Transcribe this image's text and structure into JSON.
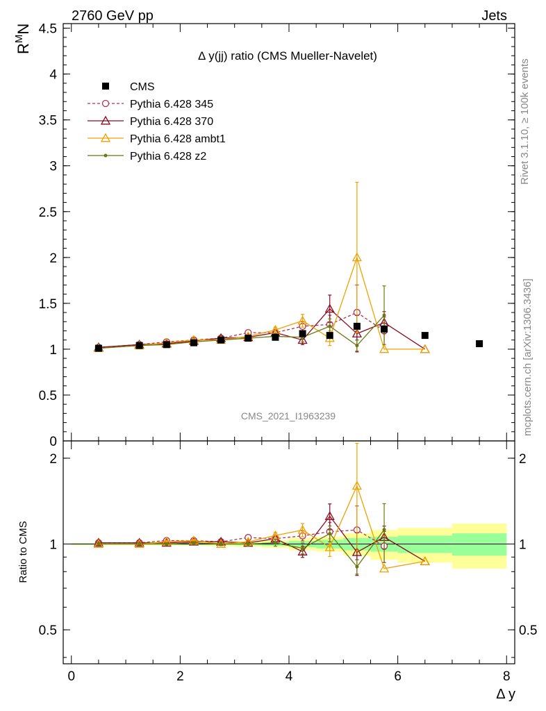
{
  "header": {
    "left": "2760 GeV pp",
    "right": "Jets"
  },
  "side_labels": {
    "rivet": "Rivet 3.1.10, ≥ 100k events",
    "mcplots": "mcplots.cern.ch [arXiv:1306.3436]"
  },
  "watermark": "CMS_2021_I1963239",
  "chart_data": {
    "type": "scatter",
    "title": "Δ y(jj) ratio (CMS Mueller-Navelet)",
    "ylabel_main": "R^M N",
    "ylabel_ratio": "Ratio to CMS",
    "xlabel": "Δ y",
    "xlim": [
      -0.15,
      8.15
    ],
    "ylim_main": [
      0,
      4.55
    ],
    "ylim_ratio": [
      0.38,
      2.3
    ],
    "ratio_log_scale": true,
    "yticks_main": [
      "0",
      "0.5",
      "1",
      "1.5",
      "2",
      "2.5",
      "3",
      "3.5",
      "4",
      "4.5"
    ],
    "yticks_ratio": [
      "0.5",
      "1",
      "2"
    ],
    "xticks": [
      "0",
      "2",
      "4",
      "6",
      "8"
    ],
    "legend_position": "top-left",
    "data": {
      "name": "CMS",
      "x": [
        0.5,
        1.25,
        1.75,
        2.25,
        2.75,
        3.25,
        3.75,
        4.25,
        4.75,
        5.25,
        5.75,
        6.5,
        7.5
      ],
      "xlow": [
        0,
        1,
        1.5,
        2,
        2.5,
        3,
        3.5,
        4,
        4.5,
        5,
        5.5,
        6,
        7
      ],
      "xhigh": [
        1,
        1.5,
        2,
        2.5,
        3,
        3.5,
        4,
        4.5,
        5,
        5.5,
        6,
        7,
        8
      ],
      "y": [
        1.01,
        1.04,
        1.05,
        1.07,
        1.1,
        1.12,
        1.13,
        1.17,
        1.15,
        1.25,
        1.22,
        1.15,
        1.06
      ],
      "stat_band": [
        0.005,
        0.005,
        0.006,
        0.007,
        0.008,
        0.01,
        0.015,
        0.025,
        0.035,
        0.05,
        0.06,
        0.07,
        0.09
      ],
      "total_band": [
        0.01,
        0.01,
        0.012,
        0.014,
        0.017,
        0.022,
        0.03,
        0.05,
        0.06,
        0.09,
        0.12,
        0.14,
        0.18
      ]
    },
    "series": [
      {
        "name": "Pythia 6.428 345",
        "color": "#b03050",
        "marker": "open-circle",
        "dashed": true,
        "x": [
          0.5,
          1.25,
          1.75,
          2.25,
          2.75,
          3.25,
          3.75,
          4.25,
          4.75,
          5.25,
          5.75
        ],
        "y": [
          1.02,
          1.05,
          1.08,
          1.1,
          1.12,
          1.18,
          1.18,
          1.25,
          1.27,
          1.4,
          1.2
        ],
        "err": [
          0.01,
          0.01,
          0.01,
          0.01,
          0.015,
          0.02,
          0.03,
          0.05,
          0.1,
          0.3,
          0.15
        ]
      },
      {
        "name": "Pythia 6.428 370",
        "color": "#8b0a1e",
        "marker": "open-triangle",
        "dashed": false,
        "x": [
          0.5,
          1.25,
          1.75,
          2.25,
          2.75,
          3.25,
          3.75,
          4.25,
          4.75,
          5.25,
          5.75,
          6.5
        ],
        "y": [
          1.02,
          1.05,
          1.06,
          1.09,
          1.12,
          1.13,
          1.18,
          1.1,
          1.44,
          1.17,
          1.29,
          1.0
        ],
        "err": [
          0.01,
          0.01,
          0.01,
          0.01,
          0.015,
          0.02,
          0.03,
          0.05,
          0.15,
          0.2,
          0.12,
          0.0
        ]
      },
      {
        "name": "Pythia 6.428 ambt1",
        "color": "#f0a000",
        "marker": "open-triangle",
        "dashed": false,
        "x": [
          0.5,
          1.25,
          1.75,
          2.25,
          2.75,
          3.25,
          3.75,
          4.25,
          4.75,
          5.25,
          5.75,
          6.5
        ],
        "y": [
          1.01,
          1.04,
          1.07,
          1.1,
          1.1,
          1.14,
          1.21,
          1.31,
          1.12,
          2.0,
          1.0,
          1.0
        ],
        "err": [
          0.01,
          0.01,
          0.01,
          0.01,
          0.015,
          0.02,
          0.03,
          0.07,
          0.08,
          0.82,
          0.0,
          0.0
        ]
      },
      {
        "name": "Pythia 6.428 z2",
        "color": "#6b7a10",
        "marker": "dot",
        "dashed": false,
        "x": [
          0.5,
          1.25,
          1.75,
          2.25,
          2.75,
          3.25,
          3.75,
          4.25,
          4.75,
          5.25,
          5.75
        ],
        "y": [
          1.01,
          1.04,
          1.05,
          1.08,
          1.1,
          1.12,
          1.14,
          1.13,
          1.25,
          1.04,
          1.37
        ],
        "err": [
          0.01,
          0.01,
          0.01,
          0.01,
          0.015,
          0.02,
          0.03,
          0.05,
          0.08,
          0.06,
          0.32
        ]
      }
    ]
  }
}
